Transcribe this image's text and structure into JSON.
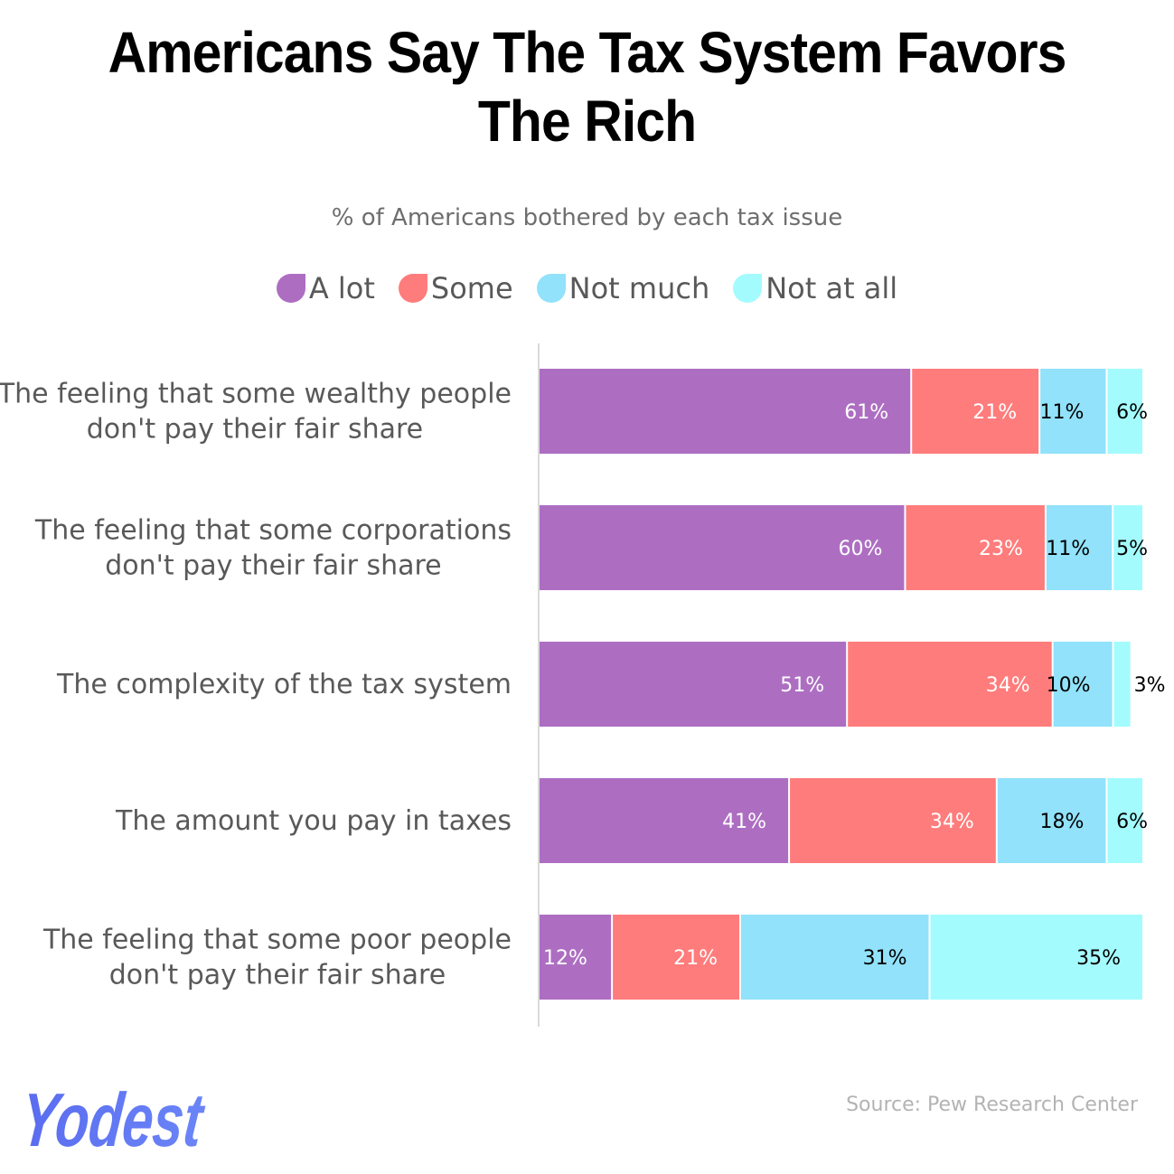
{
  "title_line1": "Americans Say The Tax System Favors",
  "title_line2": "The Rich",
  "subtitle": "% of Americans bothered by each tax issue",
  "source": "Source: Pew Research Center",
  "logo_text": "Yodest",
  "chart_data": {
    "type": "bar",
    "orientation": "horizontal",
    "stacked": true,
    "categories": [
      [
        "The feeling that some wealthy people",
        "don't pay their fair share"
      ],
      [
        "The feeling that some corporations",
        "don't pay their fair share"
      ],
      [
        "The complexity of the tax system"
      ],
      [
        "The amount you pay in taxes"
      ],
      [
        "The feeling that some poor people",
        "don't pay their fair share"
      ]
    ],
    "series": [
      {
        "name": "A lot",
        "color": "#ad6ec2",
        "label_color": "#ffffff",
        "values": [
          61,
          60,
          51,
          41,
          12
        ]
      },
      {
        "name": "Some",
        "color": "#ff7c7c",
        "label_color": "#ffffff",
        "values": [
          21,
          23,
          34,
          34,
          21
        ]
      },
      {
        "name": "Not much",
        "color": "#91e2fa",
        "label_color": "#000000",
        "values": [
          11,
          11,
          10,
          18,
          31
        ]
      },
      {
        "name": "Not at all",
        "color": "#a4fbfd",
        "label_color": "#000000",
        "values": [
          6,
          5,
          3,
          6,
          35
        ]
      }
    ],
    "value_suffix": "%",
    "legend_position": "top",
    "grid": false
  }
}
